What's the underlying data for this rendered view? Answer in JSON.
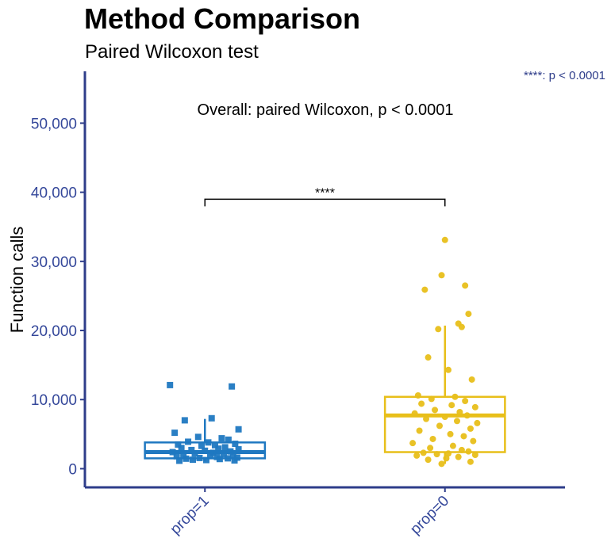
{
  "chart_data": {
    "type": "box",
    "title": "Method Comparison",
    "subtitle": "Paired Wilcoxon test",
    "significance_legend": "****: p < 0.0001",
    "overall_annotation": "Overall: paired Wilcoxon, p < 0.0001",
    "xlabel": "",
    "ylabel": "Function calls",
    "ylim": [
      -2700,
      57500
    ],
    "y_ticks": [
      0,
      10000,
      20000,
      30000,
      40000,
      50000
    ],
    "y_tick_labels": [
      "0",
      "10,000",
      "20,000",
      "30,000",
      "40,000",
      "50,000"
    ],
    "grid": false,
    "categories": [
      "prop=1",
      "prop=0"
    ],
    "colors": {
      "prop=1": "#1f78c1",
      "prop=0": "#e8bf1a",
      "axis": "#2e3d8a",
      "ticklabel": "#34479a"
    },
    "boxes": [
      {
        "category": "prop=1",
        "q1": 1500,
        "median": 2400,
        "q3": 3800,
        "whisker_low": 1100,
        "whisker_high": 7200
      },
      {
        "category": "prop=0",
        "q1": 2400,
        "median": 7700,
        "q3": 10400,
        "whisker_low": 700,
        "whisker_high": 20700
      }
    ],
    "points": [
      {
        "category": "prop=1",
        "marker": "square",
        "jitter": [
          -0.52,
          0.4,
          -0.3,
          0.1,
          0.5,
          -0.45,
          0.25,
          -0.1,
          0.35,
          -0.25,
          0.05,
          0.45,
          -0.4,
          0.15,
          -0.05,
          0.3,
          -0.35,
          0.2,
          0.5,
          -0.2,
          0.0,
          0.38,
          -0.48,
          0.12,
          -0.15,
          0.28,
          0.42,
          -0.32,
          0.08,
          -0.42,
          0.18,
          0.48,
          -0.08,
          0.34,
          -0.28,
          0.22,
          -0.18,
          0.02,
          0.44,
          -0.38
        ],
        "values": [
          12100,
          11900,
          7000,
          7300,
          5700,
          5200,
          4400,
          4600,
          4200,
          3900,
          3800,
          3600,
          3500,
          3400,
          3300,
          3100,
          3000,
          2900,
          2800,
          2700,
          2600,
          2500,
          2400,
          2300,
          2200,
          2100,
          2000,
          1900,
          1850,
          1800,
          1700,
          1600,
          1550,
          1500,
          1450,
          1400,
          1300,
          1250,
          1200,
          1150
        ]
      },
      {
        "category": "prop=0",
        "marker": "circle",
        "jitter": [
          0.0,
          -0.05,
          0.3,
          -0.3,
          0.35,
          0.2,
          0.25,
          -0.1,
          -0.25,
          0.05,
          0.4,
          -0.4,
          0.15,
          -0.2,
          0.3,
          -0.35,
          0.1,
          0.45,
          -0.15,
          0.22,
          -0.45,
          0.33,
          0.0,
          -0.28,
          0.18,
          0.48,
          -0.08,
          0.38,
          -0.38,
          0.08,
          0.28,
          -0.18,
          0.42,
          -0.48,
          0.12,
          -0.22,
          0.25,
          0.35,
          -0.32,
          0.05,
          -0.12,
          0.45,
          -0.42,
          0.2,
          0.02,
          -0.25,
          0.38,
          -0.05
        ],
        "values": [
          33100,
          28000,
          26500,
          25900,
          22400,
          21000,
          20500,
          20200,
          16100,
          14300,
          12900,
          10600,
          10400,
          10100,
          9800,
          9400,
          9200,
          8900,
          8500,
          8200,
          8000,
          7700,
          7500,
          7200,
          6900,
          6600,
          6200,
          5800,
          5500,
          5000,
          4700,
          4300,
          4000,
          3700,
          3300,
          3000,
          2700,
          2500,
          2300,
          2200,
          2100,
          2000,
          1900,
          1700,
          1500,
          1300,
          1000,
          700
        ]
      }
    ],
    "comparisons": [
      {
        "group1": "prop=1",
        "group2": "prop=0",
        "label": "****",
        "y": 39000
      }
    ]
  }
}
